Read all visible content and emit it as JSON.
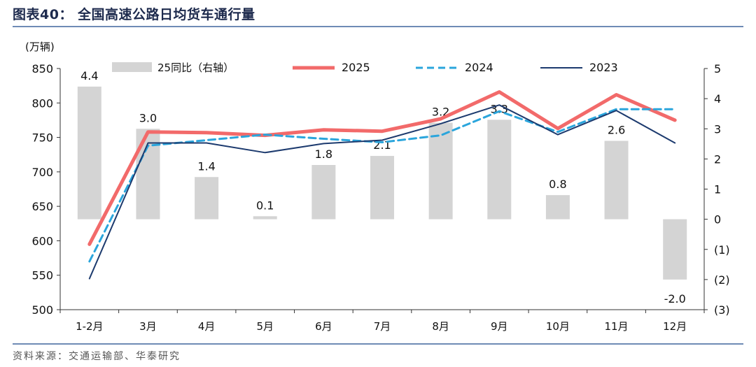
{
  "title": "图表40：  全国高速公路日均货车通行量",
  "source": "资料来源：交通运输部、华泰研究",
  "chart_data": {
    "type": "bar+line",
    "unit_label": "(万辆)",
    "categories": [
      "1-2月",
      "3月",
      "4月",
      "5月",
      "6月",
      "7月",
      "8月",
      "9月",
      "10月",
      "11月",
      "12月"
    ],
    "left_axis": {
      "min": 500,
      "max": 850,
      "ticks": [
        850,
        800,
        750,
        700,
        650,
        600,
        550,
        500
      ],
      "tick_labels": [
        "850",
        "800",
        "750",
        "700",
        "650",
        "600",
        "550",
        "500"
      ]
    },
    "right_axis": {
      "min": -3,
      "max": 5,
      "ticks": [
        5,
        4,
        3,
        2,
        1,
        0,
        -1,
        -2,
        -3
      ],
      "tick_labels": [
        "5",
        "4",
        "3",
        "2",
        "1",
        "0",
        "(1)",
        "(2)",
        "(3)"
      ]
    },
    "bars": {
      "name": "25同比（右轴）",
      "color": "#d4d4d4",
      "values": [
        4.4,
        3.0,
        1.4,
        0.1,
        1.8,
        2.1,
        3.2,
        3.3,
        0.8,
        2.6,
        -2.0
      ],
      "labels": [
        "4.4",
        "3.0",
        "1.4",
        "0.1",
        "1.8",
        "2.1",
        "3.2",
        "3.3",
        "0.8",
        "2.6",
        "-2.0"
      ]
    },
    "series": [
      {
        "name": "2025",
        "color": "#f26a6a",
        "style": "solid-thick",
        "values": [
          595,
          758,
          757,
          753,
          761,
          759,
          777,
          816,
          763,
          812,
          775
        ]
      },
      {
        "name": "2024",
        "color": "#2aa5dc",
        "style": "dashed",
        "values": [
          570,
          738,
          746,
          754,
          748,
          743,
          753,
          788,
          758,
          791,
          791
        ]
      },
      {
        "name": "2023",
        "color": "#1c3a6e",
        "style": "solid-thin",
        "values": [
          545,
          742,
          742,
          728,
          741,
          746,
          770,
          797,
          754,
          789,
          742
        ]
      }
    ]
  }
}
